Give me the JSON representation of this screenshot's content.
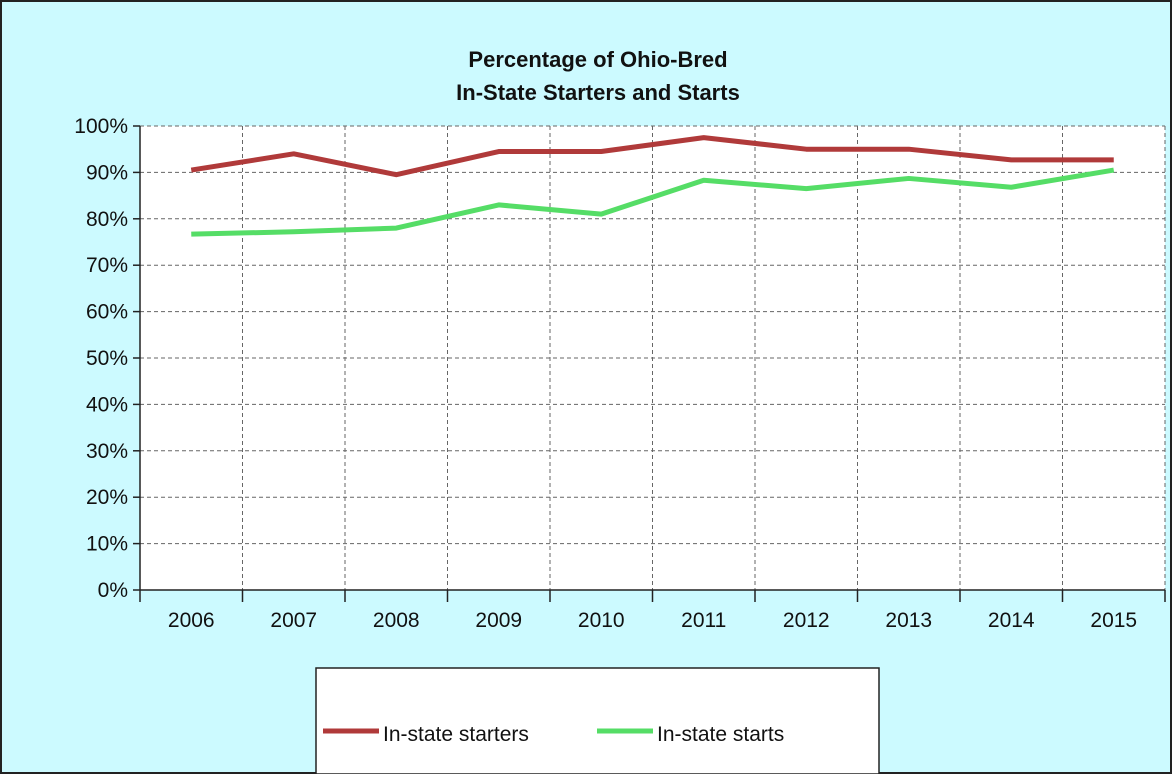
{
  "chart_data": {
    "type": "line",
    "title_lines": [
      "Percentage of Ohio-Bred",
      "In-State Starters and Starts"
    ],
    "categories": [
      "2006",
      "2007",
      "2008",
      "2009",
      "2010",
      "2011",
      "2012",
      "2013",
      "2014",
      "2015"
    ],
    "y_ticks": [
      "0%",
      "10%",
      "20%",
      "30%",
      "40%",
      "50%",
      "60%",
      "70%",
      "80%",
      "90%",
      "100%"
    ],
    "ylim": [
      0,
      100
    ],
    "grid": true,
    "legend_position": "bottom-center",
    "background_color": "#ccfaff",
    "series": [
      {
        "name": "In-state starters",
        "color": "#b03a3a",
        "values": [
          90.5,
          94,
          89.5,
          94.5,
          94.5,
          97.5,
          95,
          95,
          92.7,
          92.7
        ]
      },
      {
        "name": "In-state starts",
        "color": "#55dd66",
        "values": [
          76.7,
          77.2,
          78,
          83,
          81,
          88.3,
          86.5,
          88.7,
          86.8,
          90.5
        ]
      }
    ]
  }
}
